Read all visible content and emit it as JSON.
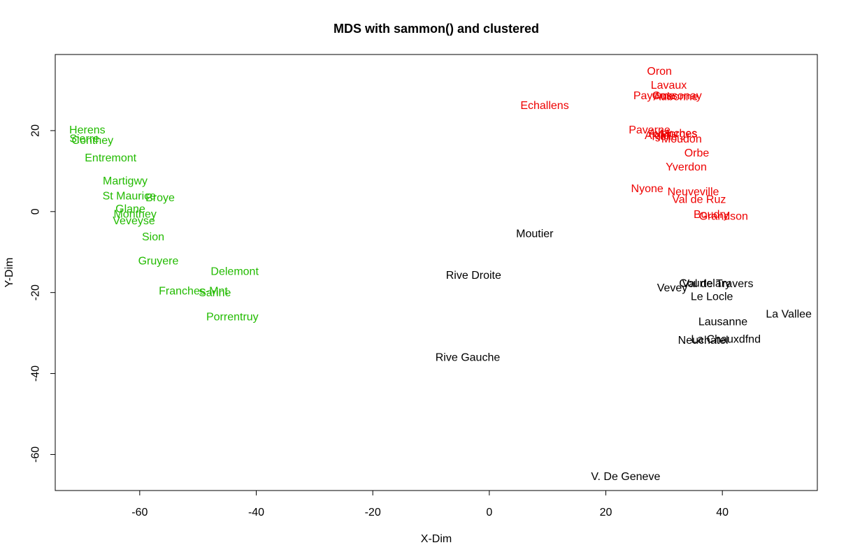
{
  "chart_data": {
    "type": "scatter",
    "title": "MDS with sammon() and clustered",
    "xlabel": "X-Dim",
    "ylabel": "Y-Dim",
    "xlim": [
      -74.5,
      56.3
    ],
    "ylim": [
      -68.9,
      38.8
    ],
    "xticks": [
      -60,
      -40,
      -20,
      0,
      20,
      40
    ],
    "yticks": [
      -60,
      -40,
      -20,
      0,
      20
    ],
    "grid": false,
    "cluster_colors": {
      "green": "#22bb00",
      "red": "#ee0000",
      "black": "#000000"
    },
    "points": [
      {
        "label": "Oron",
        "x": 29.2,
        "y": 34.6,
        "cluster": "red"
      },
      {
        "label": "Lavaux",
        "x": 30.8,
        "y": 31.1,
        "cluster": "red"
      },
      {
        "label": "Cossonay",
        "x": 32.2,
        "y": 28.5,
        "cluster": "red"
      },
      {
        "label": "Payerne",
        "x": 28.3,
        "y": 28.5,
        "cluster": "red"
      },
      {
        "label": "Aubonne",
        "x": 32.0,
        "y": 28.3,
        "cluster": "red"
      },
      {
        "label": "Echallens",
        "x": 9.5,
        "y": 26.1,
        "cluster": "red"
      },
      {
        "label": "Paverne",
        "x": 27.5,
        "y": 20.1,
        "cluster": "red"
      },
      {
        "label": "Morges",
        "x": 32.5,
        "y": 19.1,
        "cluster": "red"
      },
      {
        "label": "Avenches",
        "x": 31.5,
        "y": 19.2,
        "cluster": "red"
      },
      {
        "label": "Aigle",
        "x": 28.8,
        "y": 18.7,
        "cluster": "red"
      },
      {
        "label": "Rolle",
        "x": 30.1,
        "y": 18.4,
        "cluster": "red"
      },
      {
        "label": "Moudon",
        "x": 33.0,
        "y": 17.8,
        "cluster": "red"
      },
      {
        "label": "Orbe",
        "x": 35.6,
        "y": 14.4,
        "cluster": "red"
      },
      {
        "label": "Yverdon",
        "x": 33.8,
        "y": 10.9,
        "cluster": "red"
      },
      {
        "label": "Nyone",
        "x": 27.1,
        "y": 5.6,
        "cluster": "red"
      },
      {
        "label": "Neuveville",
        "x": 35.0,
        "y": 4.8,
        "cluster": "red"
      },
      {
        "label": "Val de Ruz",
        "x": 36.0,
        "y": 2.9,
        "cluster": "red"
      },
      {
        "label": "Boudry",
        "x": 38.1,
        "y": -0.8,
        "cluster": "red"
      },
      {
        "label": "Grandson",
        "x": 40.2,
        "y": -1.2,
        "cluster": "red"
      },
      {
        "label": "Herens",
        "x": -69.0,
        "y": 20.1,
        "cluster": "green"
      },
      {
        "label": "Sierre",
        "x": -69.5,
        "y": 17.9,
        "cluster": "green"
      },
      {
        "label": "Conthey",
        "x": -68.1,
        "y": 17.5,
        "cluster": "green"
      },
      {
        "label": "Entremont",
        "x": -65.0,
        "y": 13.2,
        "cluster": "green"
      },
      {
        "label": "Martigwy",
        "x": -62.5,
        "y": 7.5,
        "cluster": "green"
      },
      {
        "label": "St Maurice",
        "x": -61.8,
        "y": 3.8,
        "cluster": "green"
      },
      {
        "label": "Broye",
        "x": -56.5,
        "y": 3.3,
        "cluster": "green"
      },
      {
        "label": "Glane",
        "x": -61.6,
        "y": 0.6,
        "cluster": "green"
      },
      {
        "label": "Monthey",
        "x": -60.8,
        "y": -0.7,
        "cluster": "green"
      },
      {
        "label": "Veveyse",
        "x": -61.0,
        "y": -2.4,
        "cluster": "green"
      },
      {
        "label": "Sion",
        "x": -57.7,
        "y": -6.3,
        "cluster": "green"
      },
      {
        "label": "Gruyere",
        "x": -56.8,
        "y": -12.3,
        "cluster": "green"
      },
      {
        "label": "Delemont",
        "x": -43.7,
        "y": -14.9,
        "cluster": "green"
      },
      {
        "label": "Franches-Mnt",
        "x": -50.8,
        "y": -19.7,
        "cluster": "green"
      },
      {
        "label": "Sarine",
        "x": -47.1,
        "y": -20.1,
        "cluster": "green"
      },
      {
        "label": "Porrentruy",
        "x": -44.1,
        "y": -26.1,
        "cluster": "green"
      },
      {
        "label": "Moutier",
        "x": 7.8,
        "y": -5.6,
        "cluster": "black"
      },
      {
        "label": "Rive Droite",
        "x": -2.7,
        "y": -15.8,
        "cluster": "black"
      },
      {
        "label": "Courtelary",
        "x": 37.0,
        "y": -17.8,
        "cluster": "black"
      },
      {
        "label": "Val de Travers",
        "x": 39.2,
        "y": -17.9,
        "cluster": "black"
      },
      {
        "label": "Vevey",
        "x": 31.4,
        "y": -18.9,
        "cluster": "black"
      },
      {
        "label": "Le Locle",
        "x": 38.2,
        "y": -21.1,
        "cluster": "black"
      },
      {
        "label": "La Vallee",
        "x": 51.4,
        "y": -25.4,
        "cluster": "black"
      },
      {
        "label": "Lausanne",
        "x": 40.1,
        "y": -27.3,
        "cluster": "black"
      },
      {
        "label": "La Chauxdfnd",
        "x": 40.6,
        "y": -31.6,
        "cluster": "black"
      },
      {
        "label": "Neuchatel",
        "x": 36.7,
        "y": -31.9,
        "cluster": "black"
      },
      {
        "label": "Rive Gauche",
        "x": -3.7,
        "y": -36.1,
        "cluster": "black"
      },
      {
        "label": "V. De Geneve",
        "x": 23.4,
        "y": -65.5,
        "cluster": "black"
      }
    ]
  }
}
